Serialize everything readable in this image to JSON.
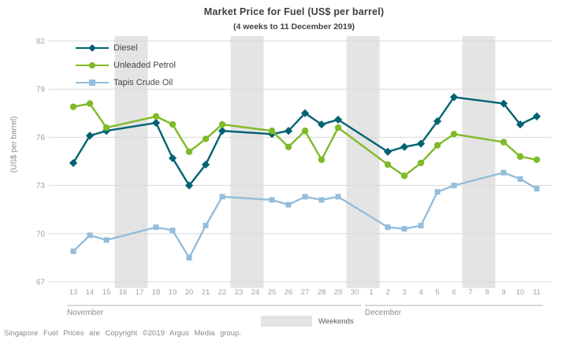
{
  "title": "Market Price for Fuel (US$ per barrel)",
  "subtitle": "(4 weeks to 11 December 2019)",
  "y_axis_title": "(US$ per barrel)",
  "footer": "Singapore Fuel Prices are Copyright ©2019 Argus Media group.",
  "weekend_legend": {
    "label": "Weekends",
    "swatch_color": "#e4e4e4"
  },
  "colors": {
    "diesel": "#006272",
    "unleaded_petrol": "#7fba28",
    "tapis_crude_oil": "#94bddb",
    "weekend_band": "#e4e4e4",
    "gridline": "#d9d9d9",
    "tick_label": "#a3a3a3",
    "month_label": "#8c8c8c",
    "title_text": "#3f3f3f"
  },
  "chart_data": {
    "type": "line",
    "title": "Market Price for Fuel (US$ per barrel)",
    "subtitle": "(4 weeks to 11 December 2019)",
    "ylabel": "(US$ per barrel)",
    "ylim": [
      67,
      82
    ],
    "y_ticks": [
      82,
      79,
      76,
      73,
      70,
      67
    ],
    "grid": true,
    "legend_position": "top-left",
    "categories": [
      "13",
      "14",
      "15",
      "16",
      "17",
      "18",
      "19",
      "20",
      "21",
      "22",
      "23",
      "24",
      "25",
      "26",
      "27",
      "28",
      "29",
      "30",
      "1",
      "2",
      "3",
      "4",
      "5",
      "6",
      "7",
      "8",
      "9",
      "10",
      "11"
    ],
    "month_groups": [
      {
        "label": "November",
        "from": 0,
        "to": 17
      },
      {
        "label": "December",
        "from": 18,
        "to": 28
      }
    ],
    "weekend_bands": [
      [
        3,
        4
      ],
      [
        10,
        11
      ],
      [
        17,
        18
      ],
      [
        24,
        25
      ]
    ],
    "series": [
      {
        "name": "Diesel",
        "color": "#006272",
        "marker": "diamond",
        "values": [
          74.4,
          76.1,
          76.4,
          null,
          null,
          76.9,
          74.7,
          73.0,
          74.3,
          76.4,
          null,
          null,
          76.2,
          76.4,
          77.5,
          76.8,
          77.1,
          null,
          null,
          75.1,
          75.4,
          75.6,
          77.0,
          78.5,
          null,
          null,
          78.1,
          76.8,
          77.3
        ]
      },
      {
        "name": "Unleaded Petrol",
        "color": "#7fba28",
        "marker": "circle",
        "values": [
          77.9,
          78.1,
          76.6,
          null,
          null,
          77.3,
          76.8,
          75.1,
          75.9,
          76.8,
          null,
          null,
          76.4,
          75.4,
          76.4,
          74.6,
          76.6,
          null,
          null,
          74.3,
          73.6,
          74.4,
          75.5,
          76.2,
          null,
          null,
          75.7,
          74.8,
          74.6
        ]
      },
      {
        "name": "Tapis Crude Oil",
        "color": "#94bddb",
        "marker": "square",
        "values": [
          68.9,
          69.9,
          69.6,
          null,
          null,
          70.4,
          70.2,
          68.5,
          70.5,
          72.3,
          null,
          null,
          72.1,
          71.8,
          72.3,
          72.1,
          72.3,
          null,
          null,
          70.4,
          70.3,
          70.5,
          72.6,
          73.0,
          null,
          null,
          73.8,
          73.4,
          72.8
        ]
      }
    ]
  }
}
